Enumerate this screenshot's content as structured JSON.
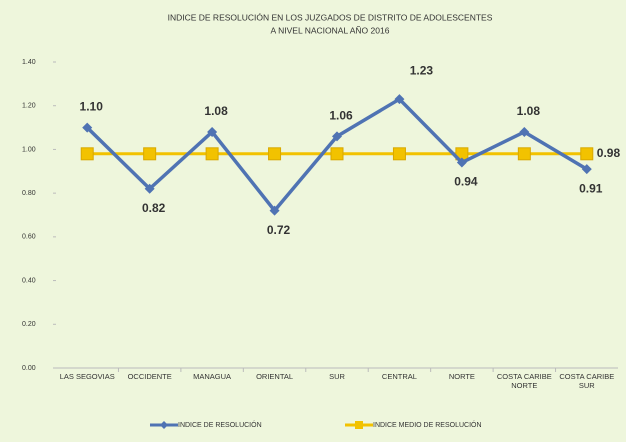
{
  "chart_data": {
    "type": "line",
    "title": "INDICE DE RESOLUCIÓN EN LOS JUZGADOS DE DISTRITO DE ADOLESCENTES",
    "subtitle": "A NIVEL NACIONAL AÑO 2016",
    "categories": [
      "LAS SEGOVIAS",
      "OCCIDENTE",
      "MANAGUA",
      "ORIENTAL",
      "SUR",
      "CENTRAL",
      "NORTE",
      "COSTA CARIBE NORTE",
      "COSTA CARIBE SUR"
    ],
    "series": [
      {
        "name": "INDICE DE RESOLUCIÓN",
        "color": "#4f73b3",
        "values": [
          1.1,
          0.82,
          1.08,
          0.72,
          1.06,
          1.23,
          0.94,
          1.08,
          0.91
        ],
        "value_labels": [
          "1.10",
          "0.82",
          "1.08",
          "0.72",
          "1.06",
          "1.23",
          "0.94",
          "1.08",
          "0.91"
        ]
      },
      {
        "name": "INDICE MEDIO DE RESOLUCIÓN",
        "color": "#f2c200",
        "values": [
          0.98,
          0.98,
          0.98,
          0.98,
          0.98,
          0.98,
          0.98,
          0.98,
          0.98
        ],
        "value_labels": [
          null,
          null,
          null,
          null,
          null,
          null,
          null,
          null,
          "0.98"
        ]
      }
    ],
    "ylim": [
      0,
      1.4
    ],
    "yticks": [
      {
        "value": 0,
        "label": "0.00"
      },
      {
        "value": 0.2,
        "label": "0.20"
      },
      {
        "value": 0.4,
        "label": "0.40"
      },
      {
        "value": 0.6,
        "label": "0.60"
      },
      {
        "value": 0.8,
        "label": "0.80"
      },
      {
        "value": 1,
        "label": "1.00"
      },
      {
        "value": 1.2,
        "label": "1.20"
      },
      {
        "value": 1.4,
        "label": "1.40"
      }
    ],
    "grid": false,
    "legend": "bottom"
  }
}
